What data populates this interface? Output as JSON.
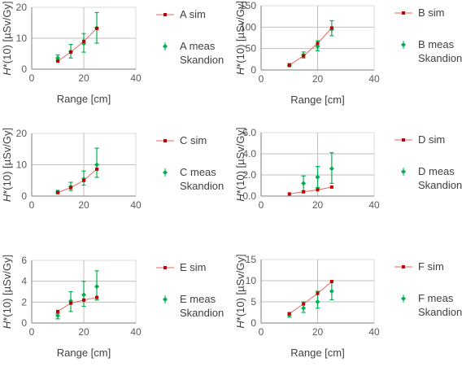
{
  "chart_data": [
    {
      "type": "scatter",
      "title": "",
      "xlabel": "Range [cm]",
      "ylabel_italic": "H",
      "ylabel_rest": "*(10) [µSv/Gy]",
      "xlim": [
        0,
        40
      ],
      "ylim": [
        0,
        20
      ],
      "xticks": [
        "0",
        "20",
        "40"
      ],
      "yticks": [
        "0",
        "10",
        "20"
      ],
      "grid": true,
      "legend_position": "right",
      "series": [
        {
          "name": "A sim",
          "style": "line-marker",
          "color": "#e8665f",
          "marker_color": "#c00000",
          "x": [
            10,
            15,
            20,
            25
          ],
          "y": [
            2.6,
            5.5,
            9.0,
            13.2
          ]
        },
        {
          "name": "A meas",
          "name_line2": "Skandion",
          "style": "marker-errorbar",
          "color": "#00b050",
          "x": [
            10,
            15,
            20,
            25
          ],
          "y": [
            3.6,
            5.7,
            8.3,
            13.3
          ],
          "yerr_low": [
            2.8,
            3.6,
            5.5,
            8.4
          ],
          "yerr_high": [
            4.6,
            8.0,
            11.5,
            18.3
          ]
        }
      ]
    },
    {
      "type": "scatter",
      "title": "",
      "xlabel": "Range [cm]",
      "ylabel_italic": "H",
      "ylabel_rest": "*(10) [µSv/Gy]",
      "xlim": [
        0,
        40
      ],
      "ylim": [
        0,
        150
      ],
      "xticks": [
        "0",
        "20",
        "40"
      ],
      "yticks": [
        "0",
        "50",
        "100",
        "150"
      ],
      "grid": true,
      "legend_position": "right",
      "series": [
        {
          "name": "B sim",
          "style": "line-marker",
          "color": "#e8665f",
          "marker_color": "#c00000",
          "x": [
            10,
            15,
            20,
            25
          ],
          "y": [
            11,
            33,
            62,
            98
          ]
        },
        {
          "name": "B meas",
          "name_line2": "Skandion",
          "style": "marker-errorbar",
          "color": "#00b050",
          "x": [
            10,
            15,
            20,
            25
          ],
          "y": [
            11,
            35,
            55,
            95
          ],
          "yerr_low": [
            8,
            28,
            45,
            80
          ],
          "yerr_high": [
            15,
            42,
            68,
            115
          ]
        }
      ]
    },
    {
      "type": "scatter",
      "title": "",
      "xlabel": "",
      "ylabel_italic": "H",
      "ylabel_rest": "*(10) [µSv/Gy]",
      "xlim": [
        0,
        40
      ],
      "ylim": [
        0,
        20
      ],
      "xticks": [
        "0",
        "20",
        "40"
      ],
      "yticks": [
        "0",
        "10",
        "20"
      ],
      "grid": true,
      "legend_position": "right",
      "series": [
        {
          "name": "C sim",
          "style": "line-marker",
          "color": "#e8665f",
          "marker_color": "#c00000",
          "x": [
            10,
            15,
            20,
            25
          ],
          "y": [
            1.1,
            2.7,
            5.0,
            8.6
          ]
        },
        {
          "name": "C meas",
          "name_line2": "Skandion",
          "style": "marker-errorbar",
          "color": "#00b050",
          "x": [
            10,
            15,
            20,
            25
          ],
          "y": [
            1.3,
            3.0,
            5.5,
            10.0
          ],
          "yerr_low": [
            0.8,
            1.8,
            3.5,
            6.0
          ],
          "yerr_high": [
            1.8,
            4.4,
            8.0,
            15.3
          ]
        }
      ]
    },
    {
      "type": "scatter",
      "title": "",
      "xlabel": "",
      "ylabel_italic": "H",
      "ylabel_rest": "*(10) [µSv/Gy]",
      "xlim": [
        0,
        40
      ],
      "ylim": [
        0,
        6
      ],
      "xticks": [
        "0",
        "20",
        "40"
      ],
      "yticks": [
        "0.0",
        "2.0",
        "4.0",
        "6.0"
      ],
      "grid": true,
      "legend_position": "right",
      "series": [
        {
          "name": "D sim",
          "style": "line-marker",
          "color": "#e8665f",
          "marker_color": "#c00000",
          "x": [
            10,
            15,
            20,
            25
          ],
          "y": [
            0.2,
            0.4,
            0.6,
            0.85
          ]
        },
        {
          "name": "D meas",
          "name_line2": "Skandion",
          "style": "marker-errorbar",
          "color": "#00b050",
          "x": [
            15,
            20,
            25
          ],
          "y": [
            1.2,
            1.8,
            2.6
          ],
          "yerr_low": [
            0.5,
            0.8,
            1.2
          ],
          "yerr_high": [
            1.9,
            2.8,
            4.1
          ]
        }
      ]
    },
    {
      "type": "scatter",
      "title": "",
      "xlabel": "Range [cm]",
      "ylabel_italic": "H",
      "ylabel_rest": "*(10) [µSv/Gy]",
      "xlim": [
        0,
        40
      ],
      "ylim": [
        0,
        6
      ],
      "xticks": [
        "0",
        "20",
        "40"
      ],
      "yticks": [
        "0",
        "2",
        "4",
        "6"
      ],
      "grid": true,
      "legend_position": "right",
      "series": [
        {
          "name": "E sim",
          "style": "line-marker",
          "color": "#e8665f",
          "marker_color": "#c00000",
          "x": [
            10,
            15,
            20,
            25
          ],
          "y": [
            1.1,
            1.9,
            2.2,
            2.45
          ]
        },
        {
          "name": "E meas",
          "name_line2": "Skandion",
          "style": "marker-errorbar",
          "color": "#00b050",
          "x": [
            10,
            15,
            20,
            25
          ],
          "y": [
            0.7,
            2.1,
            2.7,
            3.5
          ],
          "yerr_low": [
            0.4,
            1.1,
            1.6,
            2.2
          ],
          "yerr_high": [
            0.9,
            3.0,
            4.0,
            5.0
          ]
        }
      ]
    },
    {
      "type": "scatter",
      "title": "",
      "xlabel": "Range [cm]",
      "ylabel_italic": "H",
      "ylabel_rest": "*(10) [µSv/Gy]",
      "xlim": [
        0,
        40
      ],
      "ylim": [
        0,
        15
      ],
      "xticks": [
        "0",
        "20",
        "40"
      ],
      "yticks": [
        "0",
        "5",
        "10",
        "15"
      ],
      "grid": true,
      "legend_position": "right",
      "series": [
        {
          "name": "F sim",
          "style": "line-marker",
          "color": "#e8665f",
          "marker_color": "#c00000",
          "x": [
            10,
            15,
            20,
            25
          ],
          "y": [
            2.2,
            4.5,
            7.0,
            9.8
          ]
        },
        {
          "name": "F meas",
          "name_line2": "Skandion",
          "style": "marker-errorbar",
          "color": "#00b050",
          "x": [
            10,
            15,
            20,
            25
          ],
          "y": [
            1.9,
            3.5,
            5.0,
            7.5
          ],
          "yerr_low": [
            1.4,
            2.5,
            3.5,
            5.5
          ],
          "yerr_high": [
            2.4,
            5.0,
            7.5,
            10.0
          ]
        }
      ]
    }
  ]
}
